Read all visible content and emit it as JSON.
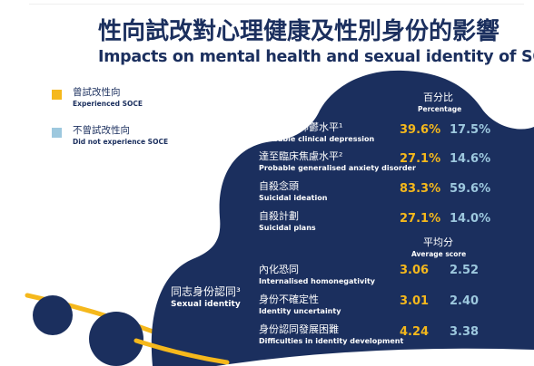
{
  "title": {
    "zh": "性向試改對心理健康及性別身份的影響",
    "en": "Impacts on mental health and sexual identity of SOCE"
  },
  "legend": [
    {
      "zh": "曾試改性向",
      "en": "Experienced SOCE",
      "color": "#f5b81c"
    },
    {
      "zh": "不曾試改性向",
      "en": "Did not experience SOCE",
      "color": "#9dc8de"
    }
  ],
  "colors": {
    "navy": "#1b2f5e",
    "yellow": "#f5b81c",
    "light_blue": "#9dc8de"
  },
  "percentage_header": {
    "zh": "百分比",
    "en": "Percentage"
  },
  "average_header": {
    "zh": "平均分",
    "en": "Average score"
  },
  "mental_health_rows": [
    {
      "zh": "達至臨床抑鬱水平¹",
      "en": "Probable clinical depression",
      "soce": "39.6%",
      "no_soce": "17.5%"
    },
    {
      "zh": "達至臨床焦慮水平²",
      "en": "Probable generalised anxiety disorder",
      "soce": "27.1%",
      "no_soce": "14.6%"
    },
    {
      "zh": "自殺念頭",
      "en": "Suicidal ideation",
      "soce": "83.3%",
      "no_soce": "59.6%"
    },
    {
      "zh": "自殺計劃",
      "en": "Suicidal plans",
      "soce": "27.1%",
      "no_soce": "14.0%"
    }
  ],
  "sexual_identity_label": {
    "zh": "同志身份認同³",
    "en": "Sexual identity"
  },
  "identity_rows": [
    {
      "zh": "內化恐同",
      "en": "Internalised homonegativity",
      "soce": "3.06",
      "no_soce": "2.52"
    },
    {
      "zh": "身份不確定性",
      "en": "Identity uncertainty",
      "soce": "3.01",
      "no_soce": "2.40"
    },
    {
      "zh": "身份認同發展困難",
      "en": "Difficulties in identity development",
      "soce": "4.24",
      "no_soce": "3.38"
    }
  ]
}
